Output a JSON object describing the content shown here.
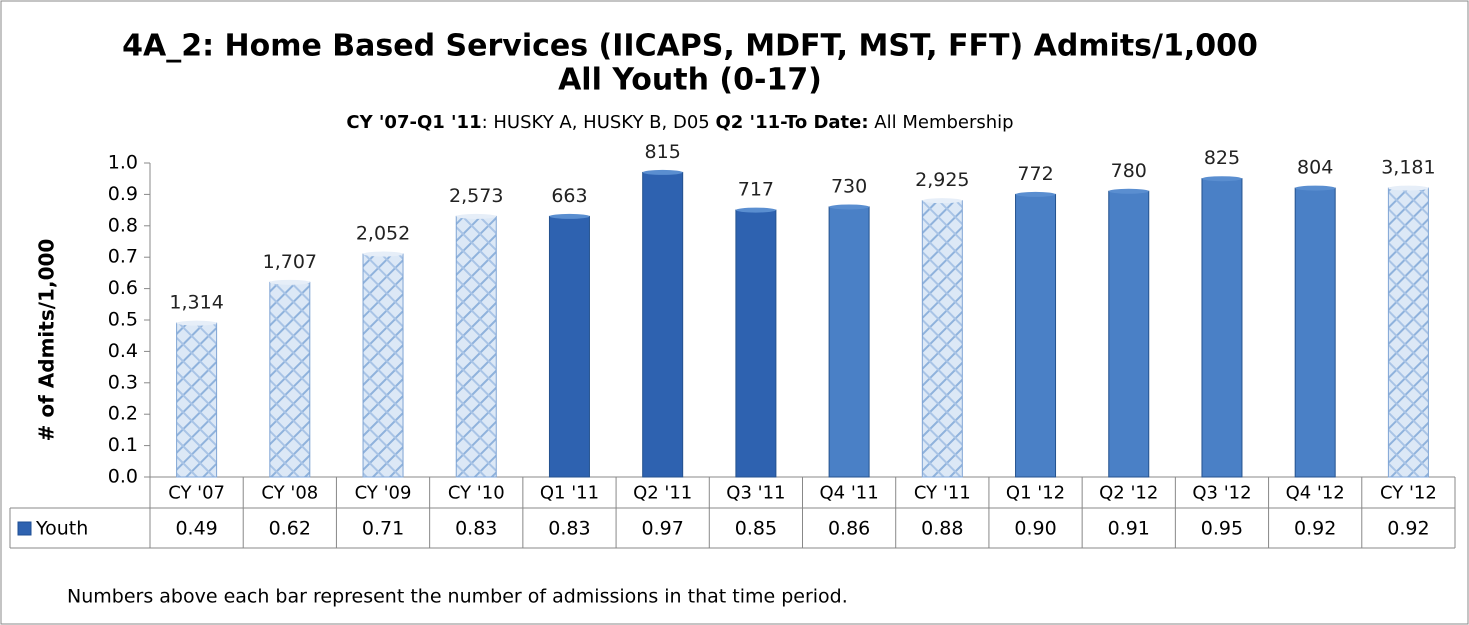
{
  "chart_data": {
    "type": "bar",
    "title": "4A_2: Home Based Services (IICAPS, MDFT, MST, FFT) Admits/1,000",
    "title_line2": "All Youth (0-17)",
    "subtitle_parts": [
      {
        "text": "CY '07-Q1 '11",
        "bold": true
      },
      {
        "text": ": HUSKY A, HUSKY B, D05  ",
        "bold": false
      },
      {
        "text": "Q2 '11-To Date:",
        "bold": true
      },
      {
        "text": " All Membership",
        "bold": false
      }
    ],
    "y_label": "# of Admits/1,000",
    "categories": [
      "CY '07",
      "CY '08",
      "CY '09",
      "CY '10",
      "Q1 '11",
      "Q2 '11",
      "Q3 '11",
      "Q4 '11",
      "CY '11",
      "Q1 '12",
      "Q2 '12",
      "Q3 '12",
      "Q4 '12",
      "CY '12"
    ],
    "series": [
      {
        "name": "Youth",
        "color": "#2e62b0",
        "values": [
          0.49,
          0.62,
          0.71,
          0.83,
          0.83,
          0.97,
          0.85,
          0.86,
          0.88,
          0.9,
          0.91,
          0.95,
          0.92,
          0.92
        ],
        "value_labels": [
          "0.49",
          "0.62",
          "0.71",
          "0.83",
          "0.83",
          "0.97",
          "0.85",
          "0.86",
          "0.88",
          "0.90",
          "0.91",
          "0.95",
          "0.92",
          "0.92"
        ],
        "colors": [
          "#bcd4ee",
          "#bcd4ee",
          "#bcd4ee",
          "#bcd4ee",
          "#2e62b0",
          "#2e62b0",
          "#2e62b0",
          "#4a80c6",
          "#bcd4ee",
          "#4a80c6",
          "#4a80c6",
          "#4a80c6",
          "#4a80c6",
          "#bcd4ee"
        ],
        "hatched": [
          true,
          true,
          true,
          true,
          false,
          false,
          false,
          false,
          true,
          false,
          false,
          false,
          false,
          true
        ]
      }
    ],
    "bar_labels": [
      "1,314",
      "1,707",
      "2,052",
      "2,573",
      "663",
      "815",
      "717",
      "730",
      "2,925",
      "772",
      "780",
      "825",
      "804",
      "3,181"
    ],
    "ylim": [
      0,
      1.0
    ],
    "yticks": [
      {
        "value": 0,
        "label": "0.0"
      },
      0.1,
      0.2,
      0.3,
      0.4,
      0.5,
      0.6,
      0.7,
      0.8,
      0.9,
      {
        "value": 1,
        "label": "1.0"
      }
    ],
    "footnote": "Numbers above each bar represent the number of admissions in that time period."
  }
}
